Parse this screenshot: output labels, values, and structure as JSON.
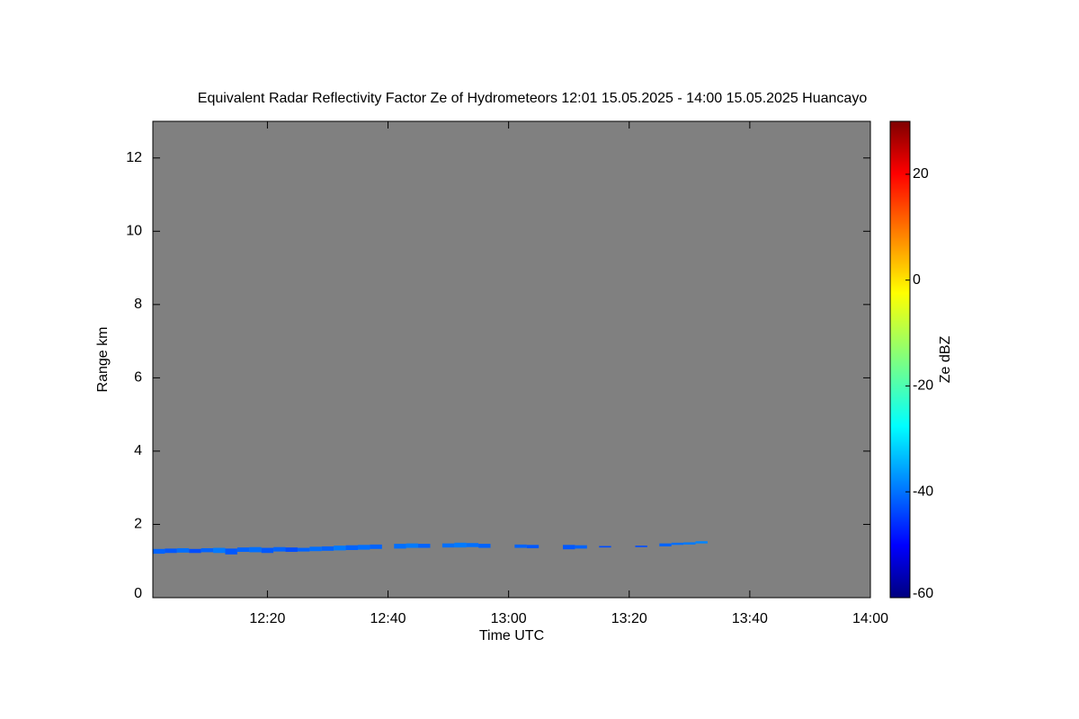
{
  "chart_data": {
    "type": "heatmap",
    "title": "Equivalent Radar Reflectivity Factor Ze of Hydrometeors   12:01 15.05.2025 - 14:00 15.05.2025 Huancayo",
    "x_label": "Time UTC",
    "y_label": "Range km",
    "colorbar_label": "Ze dBZ",
    "x": [
      "12:02",
      "12:04",
      "12:06",
      "12:08",
      "12:10",
      "12:12",
      "12:14",
      "12:16",
      "12:18",
      "12:20",
      "12:22",
      "12:24",
      "12:26",
      "12:28",
      "12:30",
      "12:32",
      "12:34",
      "12:36",
      "12:38",
      "12:42",
      "12:44",
      "12:46",
      "12:50",
      "12:52",
      "12:54",
      "12:56",
      "13:02",
      "13:04",
      "13:10",
      "13:12",
      "13:16",
      "13:22",
      "13:26",
      "13:28",
      "13:30",
      "13:32"
    ],
    "bottom": [
      1.2,
      1.22,
      1.23,
      1.22,
      1.24,
      1.22,
      1.18,
      1.25,
      1.24,
      1.22,
      1.26,
      1.25,
      1.26,
      1.27,
      1.28,
      1.29,
      1.3,
      1.31,
      1.33,
      1.34,
      1.36,
      1.36,
      1.37,
      1.37,
      1.38,
      1.36,
      1.36,
      1.35,
      1.32,
      1.34,
      1.37,
      1.38,
      1.4,
      1.44,
      1.45,
      1.48
    ],
    "top": [
      1.33,
      1.34,
      1.35,
      1.33,
      1.35,
      1.36,
      1.34,
      1.37,
      1.38,
      1.36,
      1.38,
      1.37,
      1.36,
      1.39,
      1.4,
      1.42,
      1.43,
      1.44,
      1.45,
      1.47,
      1.48,
      1.47,
      1.48,
      1.5,
      1.49,
      1.47,
      1.45,
      1.44,
      1.44,
      1.43,
      1.41,
      1.42,
      1.48,
      1.5,
      1.51,
      1.54
    ],
    "values": [
      -40,
      -41,
      -39,
      -42,
      -40,
      -38,
      -41,
      -40,
      -39,
      -41,
      -40,
      -42,
      -40,
      -39,
      -40,
      -38,
      -40,
      -39,
      -40,
      -39,
      -38,
      -40,
      -39,
      -38,
      -39,
      -40,
      -40,
      -41,
      -41,
      -40,
      -42,
      -42,
      -40,
      -39,
      -38,
      -37
    ],
    "xlim": [
      "12:01",
      "14:00"
    ],
    "xticks": [
      "12:20",
      "12:40",
      "13:00",
      "13:20",
      "13:40",
      "14:00"
    ],
    "ylim": [
      0,
      13
    ],
    "yticks": [
      0,
      2,
      4,
      6,
      8,
      10,
      12
    ],
    "clim": [
      -60,
      30
    ],
    "cticks": [
      -60,
      -40,
      -20,
      0,
      20
    ],
    "colormap": "jet",
    "background": "#808080"
  }
}
